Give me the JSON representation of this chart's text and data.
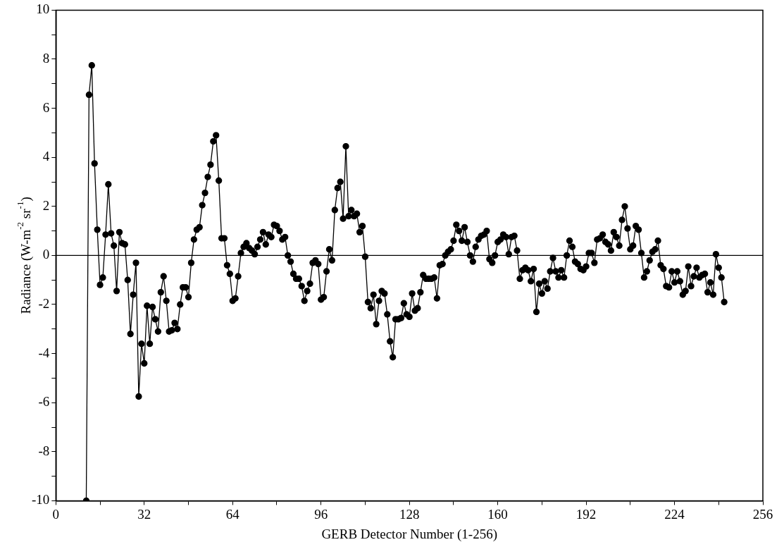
{
  "chart_data": {
    "type": "line",
    "xlabel": "GERB Detector Number (1-256)",
    "ylabel": "Radiance (W-m$^{-2}$ sr$^{-1}$)",
    "x": [
      11,
      12,
      13,
      14,
      15,
      16,
      17,
      18,
      19,
      20,
      21,
      22,
      23,
      24,
      25,
      26,
      27,
      28,
      29,
      30,
      31,
      32,
      33,
      34,
      35,
      36,
      37,
      38,
      39,
      40,
      41,
      42,
      43,
      44,
      45,
      46,
      47,
      48,
      49,
      50,
      51,
      52,
      53,
      54,
      55,
      56,
      57,
      58,
      59,
      60,
      61,
      62,
      63,
      64,
      65,
      66,
      67,
      68,
      69,
      70,
      71,
      72,
      73,
      74,
      75,
      76,
      77,
      78,
      79,
      80,
      81,
      82,
      83,
      84,
      85,
      86,
      87,
      88,
      89,
      90,
      91,
      92,
      93,
      94,
      95,
      96,
      97,
      98,
      99,
      100,
      101,
      102,
      103,
      104,
      105,
      106,
      107,
      108,
      109,
      110,
      111,
      112,
      113,
      114,
      115,
      116,
      117,
      118,
      119,
      120,
      121,
      122,
      123,
      124,
      125,
      126,
      127,
      128,
      129,
      130,
      131,
      132,
      133,
      134,
      135,
      136,
      137,
      138,
      139,
      140,
      141,
      142,
      143,
      144,
      145,
      146,
      147,
      148,
      149,
      150,
      151,
      152,
      153,
      154,
      155,
      156,
      157,
      158,
      159,
      160,
      161,
      162,
      163,
      164,
      165,
      166,
      167,
      168,
      169,
      170,
      171,
      172,
      173,
      174,
      175,
      176,
      177,
      178,
      179,
      180,
      181,
      182,
      183,
      184,
      185,
      186,
      187,
      188,
      189,
      190,
      191,
      192,
      193,
      194,
      195,
      196,
      197,
      198,
      199,
      200,
      201,
      202,
      203,
      204,
      205,
      206,
      207,
      208,
      209,
      210,
      211,
      212,
      213,
      214,
      215,
      216,
      217,
      218,
      219,
      220,
      221,
      222,
      223,
      224,
      225,
      226,
      227,
      228,
      229,
      230,
      231,
      232,
      233,
      234,
      235,
      236,
      237,
      238,
      239,
      240,
      241,
      242
    ],
    "series": [
      {
        "color": "#000000",
        "values": [
          -10,
          6.55,
          7.75,
          3.75,
          1.05,
          -1.2,
          -0.9,
          0.85,
          2.9,
          0.9,
          0.4,
          -1.45,
          0.95,
          0.5,
          0.45,
          -1.0,
          -3.2,
          -1.6,
          -0.3,
          -5.75,
          -3.6,
          -4.4,
          -2.05,
          -3.6,
          -2.1,
          -2.6,
          -3.1,
          -1.5,
          -0.85,
          -1.85,
          -3.1,
          -3.05,
          -2.75,
          -3.0,
          -2.0,
          -1.3,
          -1.3,
          -1.7,
          -0.3,
          0.65,
          1.05,
          1.15,
          2.05,
          2.55,
          3.2,
          3.7,
          4.65,
          4.9,
          3.05,
          0.7,
          0.7,
          -0.4,
          -0.75,
          -1.85,
          -1.75,
          -0.85,
          0.1,
          0.35,
          0.5,
          0.3,
          0.2,
          0.05,
          0.35,
          0.65,
          0.95,
          0.45,
          0.85,
          0.75,
          1.25,
          1.2,
          1.0,
          0.65,
          0.75,
          0.0,
          -0.25,
          -0.75,
          -0.95,
          -0.95,
          -1.25,
          -1.85,
          -1.45,
          -1.15,
          -0.3,
          -0.2,
          -0.35,
          -1.8,
          -1.7,
          -0.65,
          0.25,
          -0.2,
          1.85,
          2.75,
          3.0,
          1.5,
          4.45,
          1.6,
          1.85,
          1.6,
          1.7,
          0.95,
          1.2,
          -0.05,
          -1.9,
          -2.15,
          -1.6,
          -2.8,
          -1.85,
          -1.45,
          -1.55,
          -2.4,
          -3.5,
          -4.15,
          -2.6,
          -2.6,
          -2.55,
          -1.95,
          -2.4,
          -2.5,
          -1.55,
          -2.25,
          -2.15,
          -1.5,
          -0.8,
          -0.95,
          -0.95,
          -0.95,
          -0.9,
          -1.75,
          -0.4,
          -0.35,
          0.0,
          0.15,
          0.25,
          0.6,
          1.25,
          1.0,
          0.6,
          1.15,
          0.55,
          0.0,
          -0.25,
          0.35,
          0.65,
          0.8,
          0.85,
          1.0,
          -0.15,
          -0.3,
          0.0,
          0.55,
          0.65,
          0.85,
          0.75,
          0.05,
          0.75,
          0.8,
          0.2,
          -0.95,
          -0.6,
          -0.5,
          -0.6,
          -1.05,
          -0.55,
          -2.3,
          -1.15,
          -1.55,
          -1.05,
          -1.35,
          -0.65,
          -0.1,
          -0.65,
          -0.9,
          -0.6,
          -0.9,
          0.0,
          0.6,
          0.35,
          -0.25,
          -0.35,
          -0.55,
          -0.6,
          -0.45,
          0.1,
          0.1,
          -0.3,
          0.65,
          0.7,
          0.85,
          0.55,
          0.45,
          0.2,
          0.95,
          0.75,
          0.4,
          1.45,
          2.0,
          1.1,
          0.25,
          0.4,
          1.2,
          1.05,
          0.1,
          -0.9,
          -0.65,
          -0.2,
          0.15,
          0.25,
          0.6,
          -0.4,
          -0.55,
          -1.25,
          -1.3,
          -0.65,
          -1.1,
          -0.65,
          -1.05,
          -1.6,
          -1.45,
          -0.45,
          -1.25,
          -0.85,
          -0.5,
          -0.9,
          -0.8,
          -0.75,
          -1.5,
          -1.1,
          -1.6,
          0.05,
          -0.5,
          -0.9,
          -1.9
        ]
      }
    ],
    "xlim": [
      0,
      256
    ],
    "xticks": [
      0,
      {
        "value": 16,
        "label": null
      },
      32,
      {
        "value": 48,
        "label": null
      },
      64,
      {
        "value": 80,
        "label": null
      },
      96,
      {
        "value": 112,
        "label": null
      },
      128,
      {
        "value": 144,
        "label": null
      },
      160,
      {
        "value": 176,
        "label": null
      },
      192,
      {
        "value": 208,
        "label": null
      },
      224,
      {
        "value": 240,
        "label": null
      },
      256
    ],
    "ylim": [
      -10,
      10
    ],
    "yticks": [
      -10,
      {
        "value": -9,
        "label": null
      },
      -8,
      {
        "value": -7,
        "label": null
      },
      -6,
      {
        "value": -5,
        "label": null
      },
      -4,
      {
        "value": -3,
        "label": null
      },
      -2,
      {
        "value": -1,
        "label": null
      },
      0,
      {
        "value": 1,
        "label": null
      },
      2,
      {
        "value": 3,
        "label": null
      },
      4,
      {
        "value": 5,
        "label": null
      },
      6,
      {
        "value": 7,
        "label": null
      },
      8,
      {
        "value": 9,
        "label": null
      },
      10
    ],
    "ref_lines": [
      {
        "axis": "y",
        "value": 0,
        "color": "#000000"
      }
    ],
    "marker": "circle",
    "line_style": "solid",
    "grid": false,
    "legend": false
  }
}
